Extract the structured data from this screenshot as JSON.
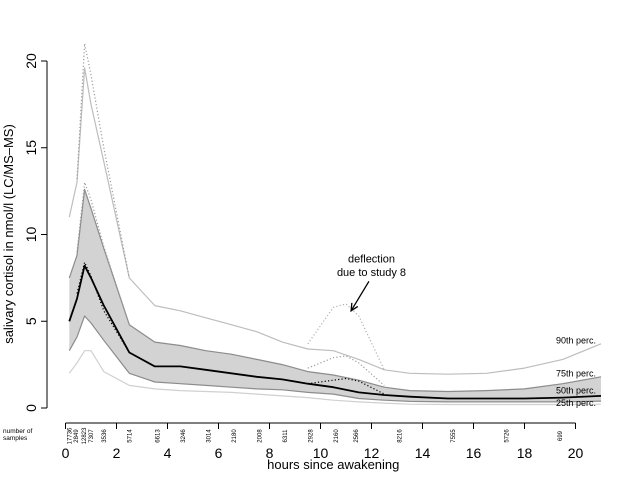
{
  "chart_data": {
    "type": "line",
    "title": "",
    "xlabel": "hours since awakening",
    "ylabel": "salivary cortisol in nmol/l (LC/MS–MS)",
    "xlim": [
      0,
      21
    ],
    "ylim": [
      0,
      20.5
    ],
    "x_ticks": [
      0,
      2,
      4,
      6,
      8,
      10,
      12,
      14,
      16,
      18,
      20
    ],
    "y_ticks": [
      0,
      5,
      10,
      15,
      20
    ],
    "grid": false,
    "band": {
      "lower": "25th perc.",
      "upper": "75th perc.",
      "color": "#d3d3d3"
    },
    "series": [
      {
        "name": "90th perc.",
        "style": "solid",
        "color": "#bdbdbd",
        "x": [
          0.15,
          0.45,
          0.75,
          1.0,
          1.5,
          2.5,
          3.5,
          4.5,
          5.5,
          6.5,
          7.5,
          8.5,
          9.5,
          10.5,
          11.5,
          12.5,
          13.5,
          15.0,
          16.5,
          18.0,
          19.5,
          21.0
        ],
        "y": [
          11.0,
          13.0,
          19.6,
          17.5,
          14.2,
          7.5,
          5.9,
          5.6,
          5.2,
          4.8,
          4.4,
          3.8,
          3.4,
          3.3,
          2.8,
          2.2,
          2.0,
          1.95,
          2.0,
          2.3,
          2.8,
          3.7
        ]
      },
      {
        "name": "75th perc.",
        "style": "solid",
        "color": "#8c8c8c",
        "x": [
          0.15,
          0.45,
          0.75,
          1.0,
          1.5,
          2.5,
          3.5,
          4.5,
          5.5,
          6.5,
          7.5,
          8.5,
          9.5,
          10.5,
          11.5,
          12.5,
          13.5,
          15.0,
          16.5,
          18.0,
          19.5,
          21.0
        ],
        "y": [
          7.5,
          8.8,
          12.6,
          11.5,
          9.2,
          4.8,
          3.8,
          3.6,
          3.3,
          3.1,
          2.8,
          2.5,
          2.1,
          1.9,
          1.6,
          1.2,
          1.0,
          0.95,
          1.0,
          1.1,
          1.4,
          1.8
        ]
      },
      {
        "name": "50th perc.",
        "style": "solid",
        "color": "#000000",
        "width": 1.8,
        "x": [
          0.15,
          0.45,
          0.75,
          1.0,
          1.5,
          2.5,
          3.5,
          4.5,
          5.5,
          6.5,
          7.5,
          8.5,
          9.5,
          10.5,
          11.5,
          12.5,
          13.5,
          15.0,
          16.5,
          18.0,
          19.5,
          21.0
        ],
        "y": [
          5.0,
          6.3,
          8.2,
          7.5,
          5.9,
          3.2,
          2.4,
          2.4,
          2.2,
          2.0,
          1.8,
          1.65,
          1.4,
          1.2,
          0.9,
          0.75,
          0.65,
          0.55,
          0.55,
          0.55,
          0.6,
          0.7
        ]
      },
      {
        "name": "25th perc.",
        "style": "solid",
        "color": "#8c8c8c",
        "x": [
          0.15,
          0.45,
          0.75,
          1.0,
          1.5,
          2.5,
          3.5,
          4.5,
          5.5,
          6.5,
          7.5,
          8.5,
          9.5,
          10.5,
          11.5,
          12.5,
          13.5,
          15.0,
          16.5,
          18.0,
          19.5,
          21.0
        ],
        "y": [
          3.3,
          4.1,
          5.3,
          4.9,
          3.9,
          2.0,
          1.5,
          1.4,
          1.3,
          1.2,
          1.1,
          1.05,
          0.9,
          0.8,
          0.55,
          0.45,
          0.38,
          0.35,
          0.35,
          0.35,
          0.35,
          0.4
        ]
      },
      {
        "name": "",
        "style": "solid",
        "color": "#d0d0d0",
        "x": [
          0.15,
          0.45,
          0.75,
          1.0,
          1.5,
          2.5,
          3.5,
          4.5,
          5.5,
          6.5,
          7.5,
          8.5,
          9.5,
          10.5,
          11.5,
          12.5,
          13.5,
          15.0,
          16.5,
          18.0,
          19.5,
          21.0
        ],
        "y": [
          2.0,
          2.6,
          3.3,
          3.3,
          2.1,
          1.3,
          1.1,
          1.0,
          0.95,
          0.9,
          0.8,
          0.7,
          0.6,
          0.45,
          0.35,
          0.28,
          0.22,
          0.2,
          0.2,
          0.2,
          0.2,
          0.22
        ]
      },
      {
        "name": "",
        "style": "dotted",
        "color": "#9a9a9a",
        "x": [
          0.45,
          0.75,
          1.0,
          1.5,
          2.5
        ],
        "y": [
          13.2,
          21.0,
          19.2,
          15.0,
          7.5
        ]
      },
      {
        "name": "",
        "style": "dotted",
        "color": "#9a9a9a",
        "x": [
          0.45,
          0.75,
          1.0,
          1.5,
          2.5
        ],
        "y": [
          9.0,
          13.0,
          12.0,
          9.3,
          4.8
        ]
      },
      {
        "name": "",
        "style": "dotted",
        "color": "#000000",
        "x": [
          0.45,
          0.75,
          1.0,
          1.5,
          2.5
        ],
        "y": [
          6.6,
          8.4,
          7.6,
          5.6,
          3.2
        ]
      },
      {
        "name": "",
        "style": "dotted",
        "color": "#b0b0b0",
        "x": [
          9.5,
          10.5,
          11.0,
          11.5,
          12.5
        ],
        "y": [
          3.7,
          5.8,
          6.0,
          5.3,
          2.2
        ]
      },
      {
        "name": "",
        "style": "dotted",
        "color": "#9a9a9a",
        "x": [
          9.5,
          10.5,
          11.0,
          11.5,
          12.5
        ],
        "y": [
          2.3,
          2.9,
          3.0,
          2.6,
          1.3
        ]
      },
      {
        "name": "",
        "style": "dotted",
        "color": "#000000",
        "x": [
          9.5,
          10.5,
          11.0,
          11.5,
          12.5
        ],
        "y": [
          1.4,
          1.6,
          1.7,
          1.55,
          0.8
        ]
      }
    ],
    "annotations": [
      {
        "text": "deflection",
        "x": 12.0,
        "y": 8.4
      },
      {
        "text": "due to study 8",
        "x": 12.0,
        "y": 7.6
      }
    ],
    "arrow": {
      "from": [
        11.9,
        7.3
      ],
      "to": [
        11.2,
        5.6
      ]
    },
    "series_labels": [
      {
        "text": "90th perc.",
        "y": 3.9
      },
      {
        "text": "75th perc.",
        "y": 2.0
      },
      {
        "text": "50th perc.",
        "y": 1.0
      },
      {
        "text": "25th perc.",
        "y": 0.3
      }
    ],
    "samples_label": [
      "number of",
      "samples"
    ],
    "sample_counts": [
      {
        "x": 0.15,
        "n": "17736"
      },
      {
        "x": 0.42,
        "n": "2849"
      },
      {
        "x": 0.72,
        "n": "12823"
      },
      {
        "x": 1.0,
        "n": "7307"
      },
      {
        "x": 1.5,
        "n": "3536"
      },
      {
        "x": 2.5,
        "n": "5714"
      },
      {
        "x": 3.6,
        "n": "6613"
      },
      {
        "x": 4.6,
        "n": "3246"
      },
      {
        "x": 5.6,
        "n": "3014"
      },
      {
        "x": 6.6,
        "n": "2180"
      },
      {
        "x": 7.6,
        "n": "2008"
      },
      {
        "x": 8.6,
        "n": "6311"
      },
      {
        "x": 9.6,
        "n": "2928"
      },
      {
        "x": 10.6,
        "n": "2160"
      },
      {
        "x": 11.4,
        "n": "2566"
      },
      {
        "x": 13.1,
        "n": "8216"
      },
      {
        "x": 15.2,
        "n": "7555"
      },
      {
        "x": 17.3,
        "n": "5726"
      },
      {
        "x": 19.4,
        "n": "699"
      }
    ]
  }
}
